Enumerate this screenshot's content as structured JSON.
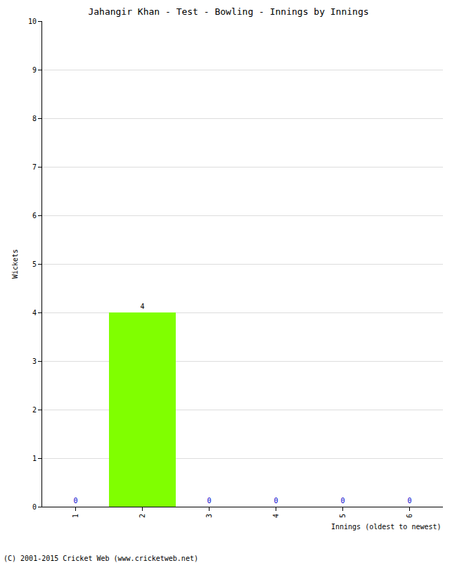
{
  "chart_data": {
    "type": "bar",
    "title": "Jahangir Khan - Test - Bowling - Innings by Innings",
    "x_label": "Innings (oldest to newest)",
    "y_label": "Wickets",
    "categories": [
      "1",
      "2",
      "3",
      "4",
      "5",
      "6"
    ],
    "values": [
      0,
      4,
      0,
      0,
      0,
      0
    ],
    "color": "#80ff00",
    "ylim": [
      0,
      10
    ],
    "yticks": [
      0,
      1,
      2,
      3,
      4,
      5,
      6,
      7,
      8,
      9,
      10
    ],
    "grid": true,
    "data_labels": true,
    "annotations": [
      "(C) 2001-2015 Cricket Web (www.cricketweb.net)"
    ]
  }
}
